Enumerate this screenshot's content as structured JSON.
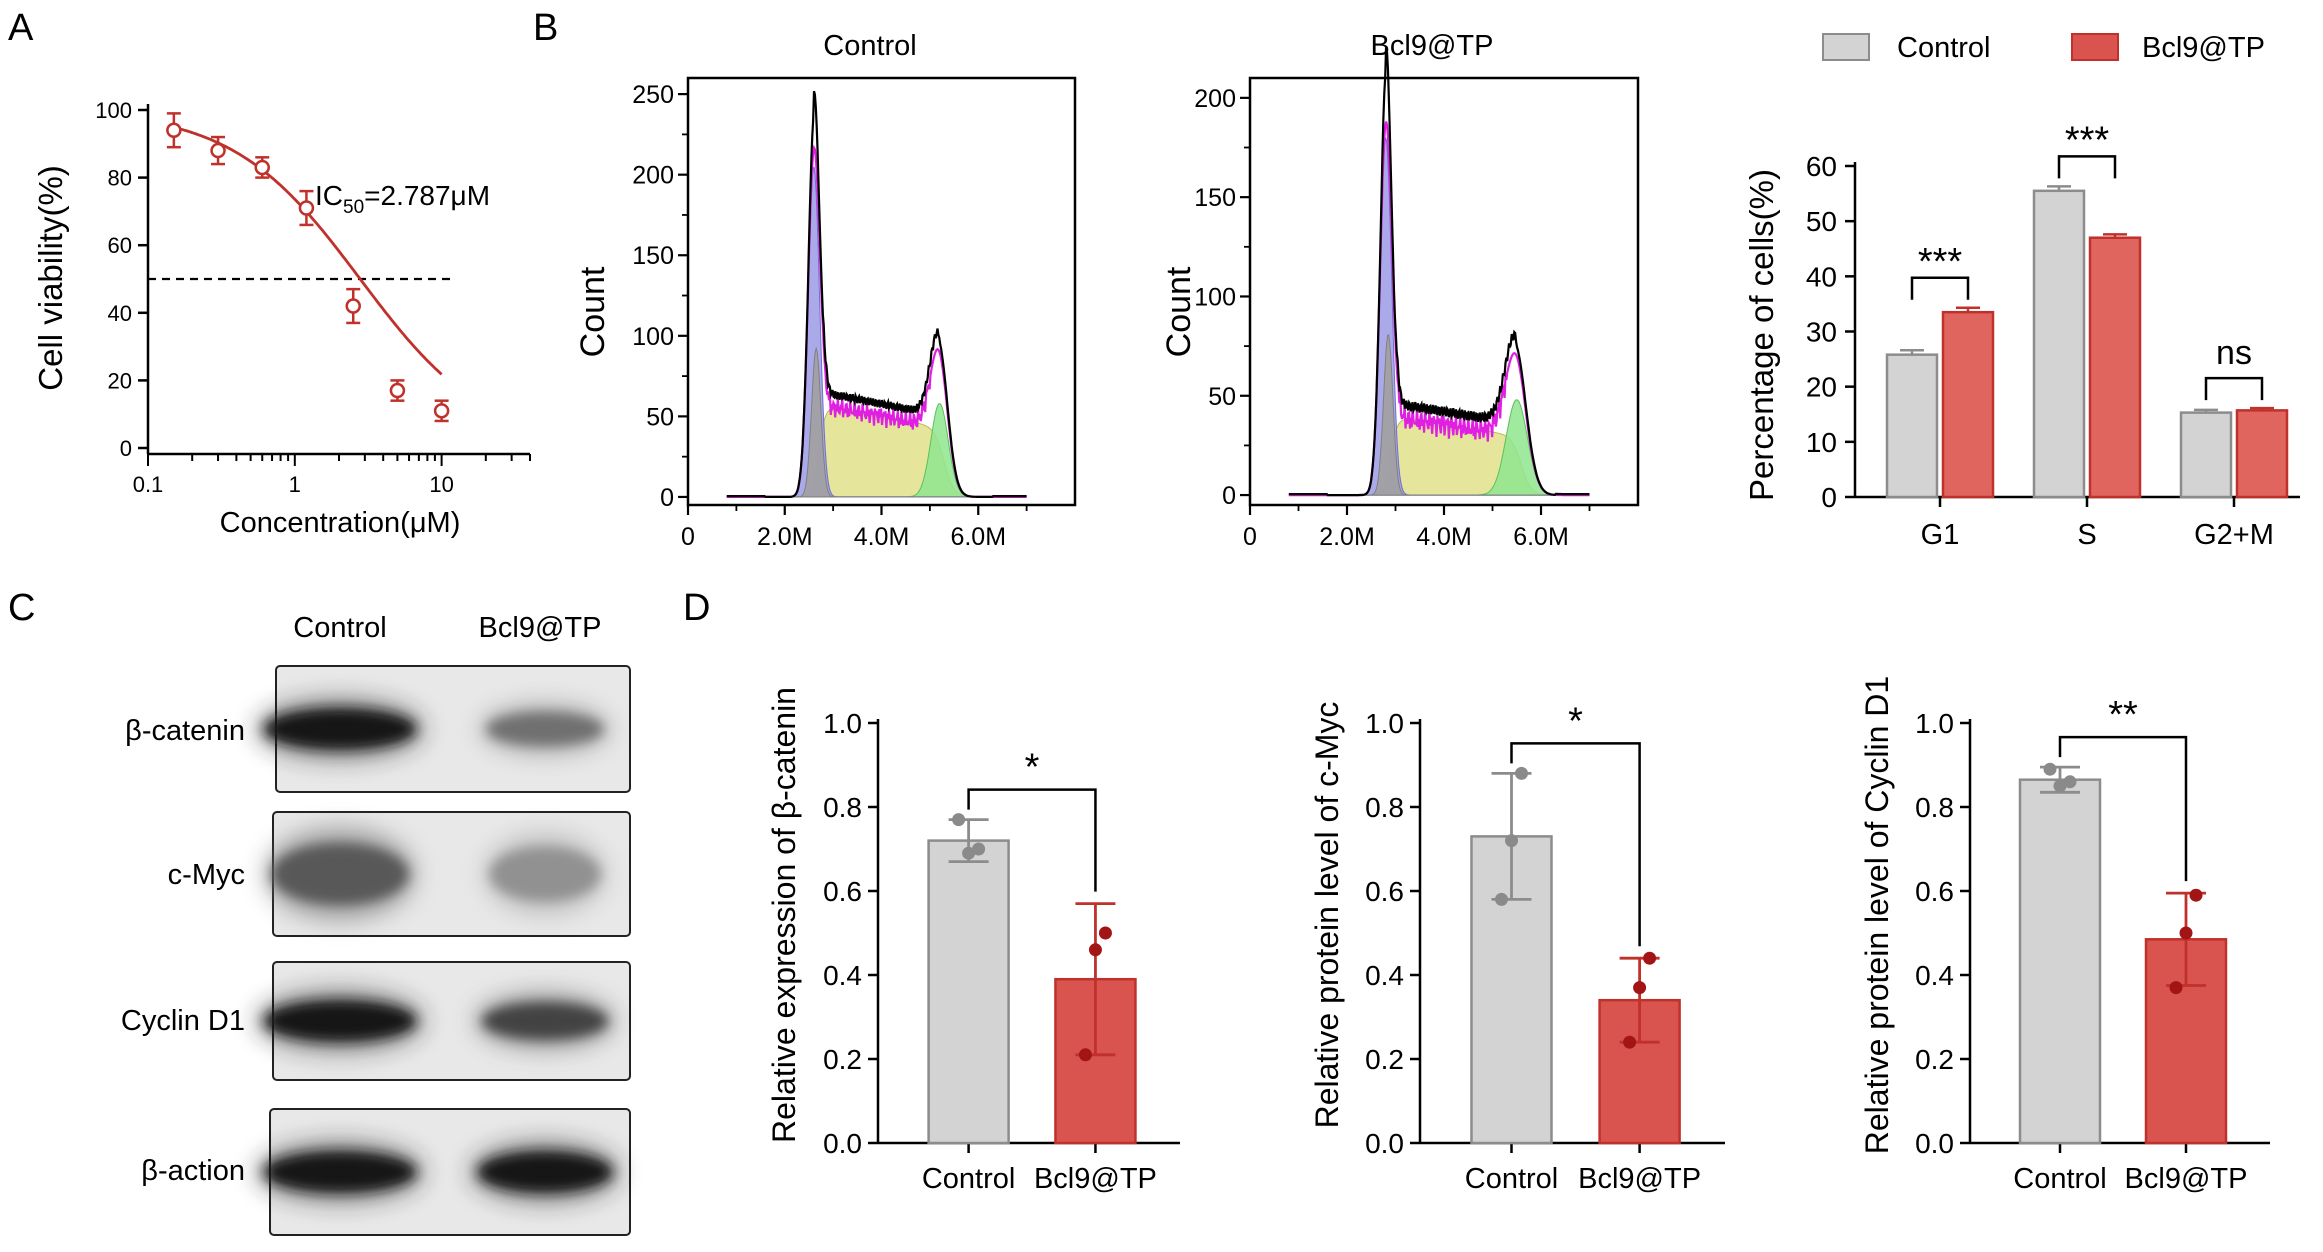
{
  "panels": {
    "A": "A",
    "B": "B",
    "C": "C",
    "D": "D"
  },
  "colors": {
    "red": "#c0312b",
    "red_fill": "#d9534f",
    "red_fill_b": "#e0655f",
    "gray_fill": "#d3d3d3",
    "gray_edge": "#8c8c8c",
    "dark_red": "#a31515"
  },
  "chart_data": [
    {
      "id": "A",
      "type": "scatter",
      "scale_x": "log",
      "x": [
        0.15,
        0.3,
        0.6,
        1.2,
        2.5,
        5,
        10
      ],
      "y": [
        94,
        88,
        83,
        71,
        42,
        17,
        11
      ],
      "err": [
        5,
        4,
        3,
        5,
        5,
        3,
        3
      ],
      "fit_curve": {
        "top": 100,
        "bottom": 0,
        "ic50": 2.787,
        "hill": 1.0
      },
      "threshold_line": 50,
      "annotation": {
        "label": "IC",
        "sub": "50",
        "rest": "=2.787μM"
      },
      "xlabel": "Concentration(μM)",
      "ylabel": "Cell viability(%)",
      "xticks": [
        "0.1",
        "1",
        "10"
      ],
      "yticks": [
        "0",
        "20",
        "40",
        "60",
        "80",
        "100"
      ],
      "xlim": [
        0.1,
        40
      ],
      "ylim": [
        0,
        100
      ]
    },
    {
      "id": "B1",
      "type": "area",
      "title": "Control",
      "xlabel": "",
      "ylabel": "Count",
      "xticks": [
        "0",
        "2.0M",
        "4.0M",
        "6.0M"
      ],
      "yticks": [
        "0",
        "50",
        "100",
        "150",
        "200",
        "250"
      ],
      "xlim": [
        0,
        8
      ],
      "ylim": [
        -5,
        260
      ],
      "g1": {
        "mu": 2.6,
        "sd": 0.12,
        "h": 205
      },
      "g2": {
        "mu": 5.2,
        "sd": 0.18,
        "h": 58
      },
      "s_level": 58,
      "total_peak": 225
    },
    {
      "id": "B2",
      "type": "area",
      "title": "Bcl9@TP",
      "xlabel": "",
      "ylabel": "Count",
      "xticks": [
        "0",
        "2.0M",
        "4.0M",
        "6.0M"
      ],
      "yticks": [
        "0",
        "50",
        "100",
        "150",
        "200"
      ],
      "xlim": [
        0,
        8
      ],
      "ylim": [
        -5,
        210
      ],
      "g1": {
        "mu": 2.8,
        "sd": 0.12,
        "h": 180
      },
      "g2": {
        "mu": 5.5,
        "sd": 0.22,
        "h": 48
      },
      "s_level": 40,
      "total_peak": 205
    },
    {
      "id": "B3",
      "type": "bar",
      "categories": [
        "G1",
        "S",
        "G2+M"
      ],
      "series": [
        {
          "name": "Control",
          "values": [
            25.8,
            55.5,
            15.3
          ],
          "err": [
            0.8,
            0.8,
            0.5
          ]
        },
        {
          "name": "Bcl9@TP",
          "values": [
            33.5,
            47.0,
            15.7
          ],
          "err": [
            0.8,
            0.6,
            0.4
          ]
        }
      ],
      "significance": [
        "***",
        "***",
        "ns"
      ],
      "ylabel": "Percentage of cells(%)",
      "yticks": [
        "0",
        "10",
        "20",
        "30",
        "40",
        "50",
        "60"
      ],
      "ylim": [
        0,
        60
      ]
    },
    {
      "id": "D1",
      "type": "bar",
      "categories": [
        "Control",
        "Bcl9@TP"
      ],
      "values": [
        0.72,
        0.39
      ],
      "err": [
        0.05,
        0.18
      ],
      "points": [
        [
          0.77,
          0.69,
          0.7
        ],
        [
          0.21,
          0.46,
          0.5
        ]
      ],
      "significance": "*",
      "ylabel": "Relative expression of β-catenin",
      "yticks": [
        "0.0",
        "0.2",
        "0.4",
        "0.6",
        "0.8",
        "1.0"
      ],
      "ylim": [
        0,
        1
      ]
    },
    {
      "id": "D2",
      "type": "bar",
      "categories": [
        "Control",
        "Bcl9@TP"
      ],
      "values": [
        0.73,
        0.34
      ],
      "err": [
        0.15,
        0.1
      ],
      "points": [
        [
          0.58,
          0.72,
          0.88
        ],
        [
          0.24,
          0.37,
          0.44
        ]
      ],
      "significance": "*",
      "ylabel": "Relative protein level of c-Myc",
      "yticks": [
        "0.0",
        "0.2",
        "0.4",
        "0.6",
        "0.8",
        "1.0"
      ],
      "ylim": [
        0,
        1
      ]
    },
    {
      "id": "D3",
      "type": "bar",
      "categories": [
        "Control",
        "Bcl9@TP"
      ],
      "values": [
        0.865,
        0.485
      ],
      "err": [
        0.03,
        0.11
      ],
      "points": [
        [
          0.89,
          0.85,
          0.86
        ],
        [
          0.37,
          0.5,
          0.59
        ]
      ],
      "significance": "**",
      "ylabel": "Relative protein level of Cyclin D1",
      "yticks": [
        "0.0",
        "0.2",
        "0.4",
        "0.6",
        "0.8",
        "1.0"
      ],
      "ylim": [
        0,
        1
      ]
    }
  ],
  "western_blot": {
    "columns": [
      "Control",
      "Bcl9@TP"
    ],
    "rows": [
      {
        "label": "β-catenin",
        "control": 0.95,
        "treated": 0.55
      },
      {
        "label": "c-Myc",
        "control": 0.65,
        "treated": 0.4
      },
      {
        "label": "Cyclin D1",
        "control": 0.95,
        "treated": 0.75
      },
      {
        "label": "β-action",
        "control": 0.95,
        "treated": 0.95
      }
    ]
  }
}
